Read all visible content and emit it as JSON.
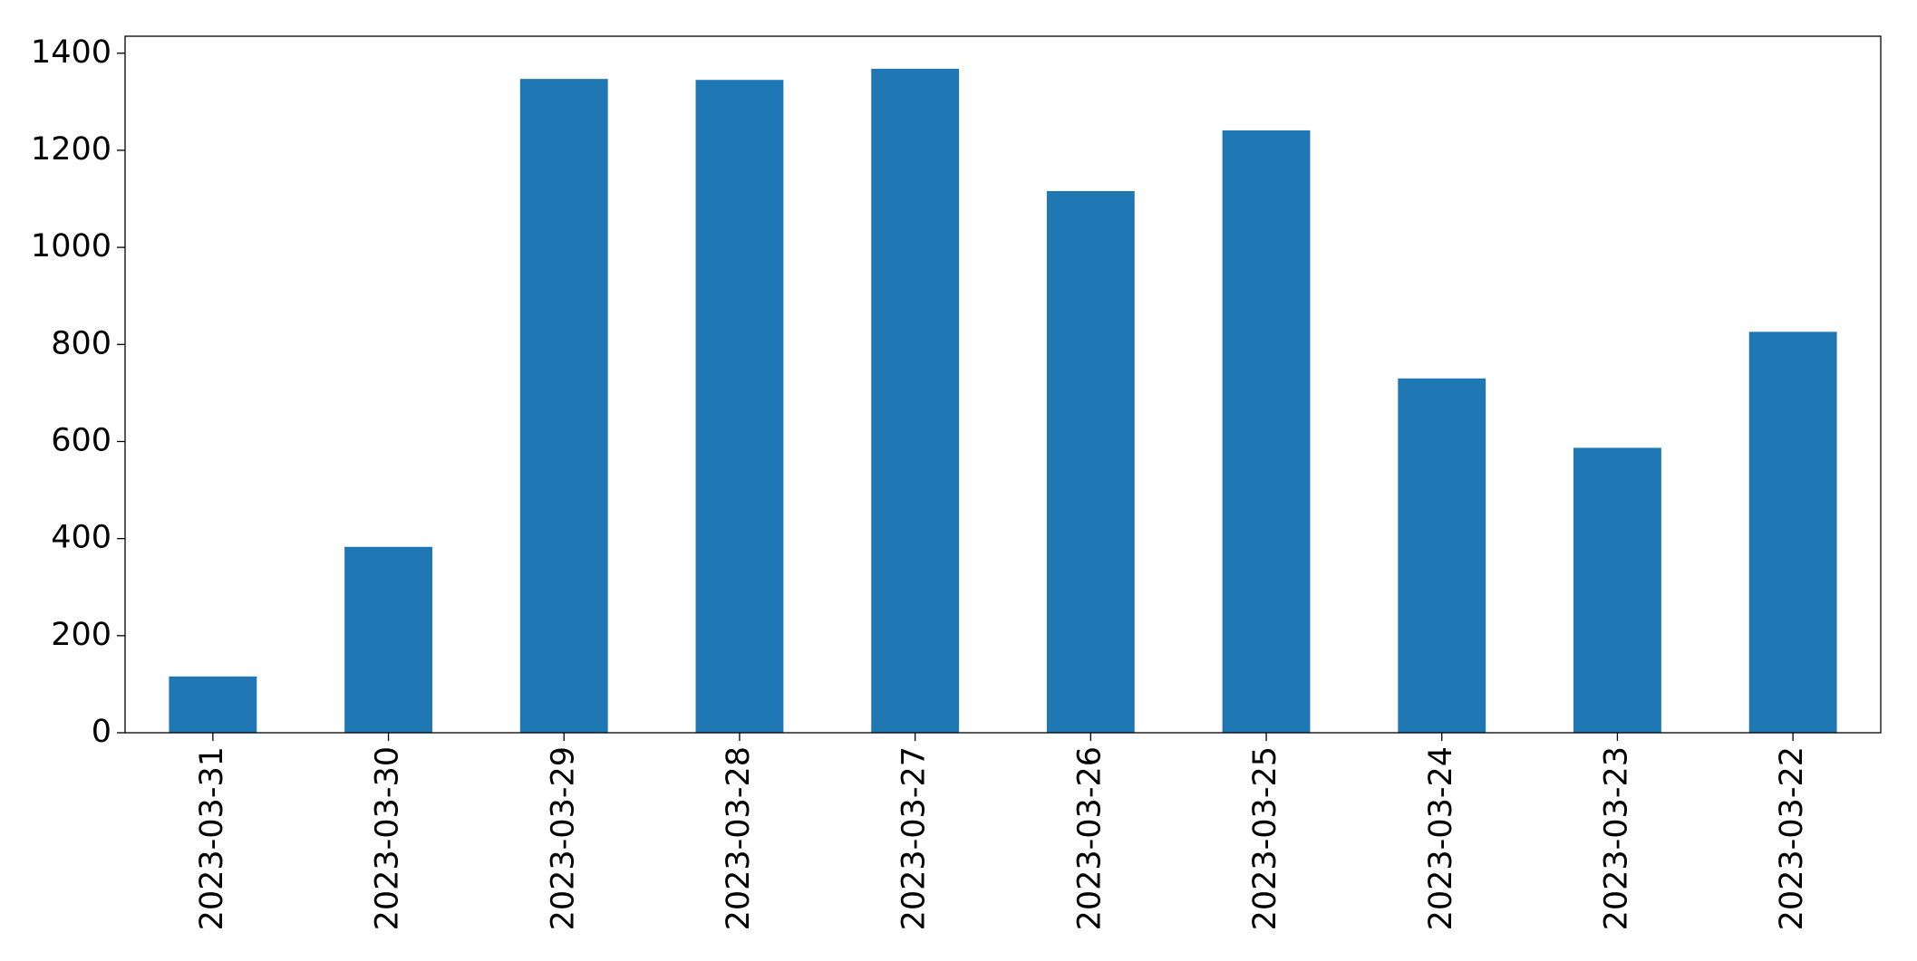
{
  "chart_data": {
    "type": "bar",
    "categories": [
      "2023-03-31",
      "2023-03-30",
      "2023-03-29",
      "2023-03-28",
      "2023-03-27",
      "2023-03-26",
      "2023-03-25",
      "2023-03-24",
      "2023-03-23",
      "2023-03-22"
    ],
    "values": [
      116,
      383,
      1347,
      1345,
      1368,
      1116,
      1241,
      730,
      587,
      826
    ],
    "color": "#1f77b4",
    "ylim": [
      0,
      1435
    ],
    "yticks": [
      0,
      200,
      400,
      600,
      800,
      1000,
      1200,
      1400
    ],
    "grid": false
  }
}
